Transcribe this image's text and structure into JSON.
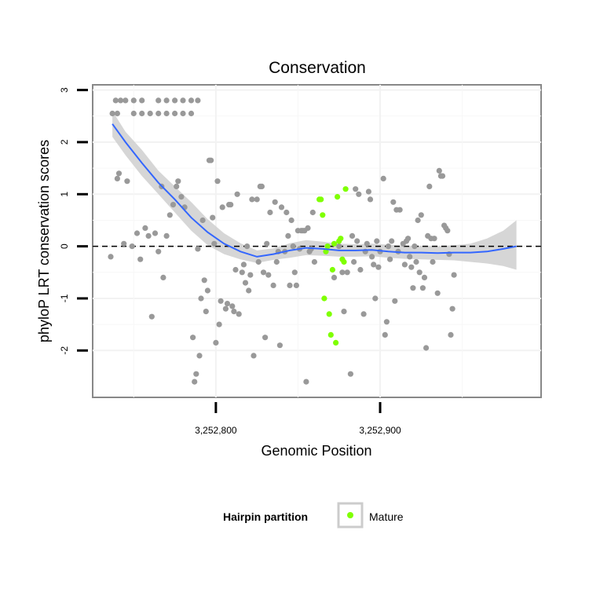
{
  "chart_data": {
    "type": "scatter",
    "title": "Conservation",
    "xlabel": "Genomic Position",
    "ylabel": "phyloP LRT conservation scores",
    "xlim": [
      3252725,
      3252998
    ],
    "ylim": [
      -2.9,
      3.1
    ],
    "x_ticks": [
      {
        "value": 3252800,
        "label": "3,252,800"
      },
      {
        "value": 3252900,
        "label": "3,252,900"
      }
    ],
    "y_ticks": [
      {
        "value": 3,
        "label": "3"
      },
      {
        "value": 2,
        "label": "2"
      },
      {
        "value": 1,
        "label": "1"
      },
      {
        "value": 0,
        "label": "0"
      },
      {
        "value": -1,
        "label": "-1"
      },
      {
        "value": -2,
        "label": "-2"
      }
    ],
    "reference_line": {
      "y": 0,
      "style": "dashed",
      "color": "#000000"
    },
    "smooth": {
      "name": "loess fit",
      "color": "#3366ff",
      "ribbon_color": "#cccccc",
      "x": [
        3252737,
        3252745,
        3252755,
        3252765,
        3252775,
        3252785,
        3252795,
        3252805,
        3252815,
        3252825,
        3252835,
        3252845,
        3252855,
        3252865,
        3252875,
        3252885,
        3252895,
        3252905,
        3252915,
        3252925,
        3252935,
        3252945,
        3252955,
        3252965,
        3252975,
        3252983
      ],
      "y": [
        2.35,
        2.0,
        1.6,
        1.22,
        0.9,
        0.55,
        0.27,
        0.05,
        -0.1,
        -0.2,
        -0.15,
        -0.08,
        -0.03,
        -0.05,
        -0.08,
        -0.08,
        -0.07,
        -0.1,
        -0.12,
        -0.12,
        -0.13,
        -0.12,
        -0.12,
        -0.1,
        -0.05,
        0.0
      ],
      "upper": [
        2.6,
        2.2,
        1.85,
        1.45,
        1.15,
        0.85,
        0.52,
        0.25,
        0.06,
        -0.08,
        -0.04,
        0.06,
        0.12,
        0.09,
        0.05,
        0.04,
        0.05,
        0.03,
        0.01,
        0.01,
        0.0,
        0.02,
        0.05,
        0.15,
        0.3,
        0.5
      ],
      "lower": [
        2.1,
        1.75,
        1.35,
        1.0,
        0.65,
        0.3,
        0.02,
        -0.15,
        -0.25,
        -0.32,
        -0.26,
        -0.22,
        -0.17,
        -0.18,
        -0.2,
        -0.2,
        -0.19,
        -0.22,
        -0.24,
        -0.25,
        -0.26,
        -0.27,
        -0.3,
        -0.33,
        -0.38,
        -0.45
      ]
    },
    "series": [
      {
        "name": "Other",
        "color": "#999999",
        "points": [
          [
            3252737,
            2.55
          ],
          [
            3252739,
            2.8
          ],
          [
            3252742,
            2.8
          ],
          [
            3252745,
            2.8
          ],
          [
            3252750,
            2.8
          ],
          [
            3252755,
            2.8
          ],
          [
            3252740,
            2.55
          ],
          [
            3252750,
            2.55
          ],
          [
            3252755,
            2.55
          ],
          [
            3252760,
            2.55
          ],
          [
            3252765,
            2.55
          ],
          [
            3252770,
            2.55
          ],
          [
            3252775,
            2.55
          ],
          [
            3252780,
            2.55
          ],
          [
            3252785,
            2.55
          ],
          [
            3252765,
            2.8
          ],
          [
            3252770,
            2.8
          ],
          [
            3252775,
            2.8
          ],
          [
            3252780,
            2.8
          ],
          [
            3252785,
            2.8
          ],
          [
            3252789,
            2.8
          ],
          [
            3252736,
            -0.2
          ],
          [
            3252740,
            1.3
          ],
          [
            3252741,
            1.4
          ],
          [
            3252744,
            0.05
          ],
          [
            3252746,
            1.25
          ],
          [
            3252749,
            0.0
          ],
          [
            3252752,
            0.25
          ],
          [
            3252754,
            -0.25
          ],
          [
            3252757,
            0.35
          ],
          [
            3252759,
            0.2
          ],
          [
            3252761,
            -1.35
          ],
          [
            3252763,
            0.25
          ],
          [
            3252765,
            -0.1
          ],
          [
            3252767,
            1.15
          ],
          [
            3252768,
            -0.6
          ],
          [
            3252770,
            0.2
          ],
          [
            3252772,
            0.6
          ],
          [
            3252774,
            0.8
          ],
          [
            3252776,
            1.15
          ],
          [
            3252777,
            1.25
          ],
          [
            3252779,
            0.95
          ],
          [
            3252781,
            0.75
          ],
          [
            3252786,
            -1.75
          ],
          [
            3252787,
            -2.6
          ],
          [
            3252788,
            -2.45
          ],
          [
            3252789,
            -0.05
          ],
          [
            3252790,
            -2.1
          ],
          [
            3252791,
            -1.0
          ],
          [
            3252792,
            0.5
          ],
          [
            3252793,
            -0.65
          ],
          [
            3252794,
            -1.25
          ],
          [
            3252795,
            -0.85
          ],
          [
            3252796,
            1.65
          ],
          [
            3252797,
            1.65
          ],
          [
            3252798,
            0.55
          ],
          [
            3252799,
            0.05
          ],
          [
            3252800,
            -1.85
          ],
          [
            3252801,
            1.25
          ],
          [
            3252802,
            -1.5
          ],
          [
            3252803,
            -1.05
          ],
          [
            3252804,
            0.75
          ],
          [
            3252806,
            -1.2
          ],
          [
            3252807,
            -1.1
          ],
          [
            3252808,
            0.8
          ],
          [
            3252809,
            0.8
          ],
          [
            3252810,
            -1.15
          ],
          [
            3252811,
            -1.25
          ],
          [
            3252812,
            -0.45
          ],
          [
            3252813,
            1.0
          ],
          [
            3252814,
            -1.3
          ],
          [
            3252816,
            -0.5
          ],
          [
            3252817,
            -0.35
          ],
          [
            3252818,
            -0.7
          ],
          [
            3252819,
            0.0
          ],
          [
            3252820,
            -0.85
          ],
          [
            3252821,
            -0.55
          ],
          [
            3252822,
            0.9
          ],
          [
            3252823,
            -2.1
          ],
          [
            3252825,
            0.9
          ],
          [
            3252826,
            -0.3
          ],
          [
            3252827,
            1.15
          ],
          [
            3252828,
            1.15
          ],
          [
            3252829,
            -0.5
          ],
          [
            3252830,
            -1.75
          ],
          [
            3252831,
            0.05
          ],
          [
            3252832,
            -0.55
          ],
          [
            3252833,
            0.65
          ],
          [
            3252835,
            -0.75
          ],
          [
            3252836,
            0.85
          ],
          [
            3252837,
            -0.3
          ],
          [
            3252838,
            -0.1
          ],
          [
            3252839,
            -1.9
          ],
          [
            3252840,
            0.75
          ],
          [
            3252842,
            -0.1
          ],
          [
            3252843,
            0.65
          ],
          [
            3252844,
            0.2
          ],
          [
            3252845,
            -0.75
          ],
          [
            3252846,
            0.5
          ],
          [
            3252847,
            0.0
          ],
          [
            3252848,
            -0.5
          ],
          [
            3252849,
            -0.75
          ],
          [
            3252850,
            0.3
          ],
          [
            3252851,
            -0.05
          ],
          [
            3252852,
            0.3
          ],
          [
            3252853,
            0.3
          ],
          [
            3252854,
            0.3
          ],
          [
            3252855,
            -2.6
          ],
          [
            3252856,
            0.35
          ],
          [
            3252857,
            -0.1
          ],
          [
            3252858,
            -0.05
          ],
          [
            3252859,
            0.65
          ],
          [
            3252860,
            -0.3
          ],
          [
            3252872,
            -0.6
          ],
          [
            3252875,
            0.0
          ],
          [
            3252877,
            -0.5
          ],
          [
            3252878,
            -1.25
          ],
          [
            3252880,
            -0.5
          ],
          [
            3252882,
            -2.45
          ],
          [
            3252883,
            0.2
          ],
          [
            3252884,
            -0.3
          ],
          [
            3252885,
            1.1
          ],
          [
            3252886,
            0.1
          ],
          [
            3252887,
            1.0
          ],
          [
            3252888,
            -0.45
          ],
          [
            3252890,
            -1.3
          ],
          [
            3252891,
            -0.1
          ],
          [
            3252892,
            0.05
          ],
          [
            3252893,
            1.05
          ],
          [
            3252894,
            0.9
          ],
          [
            3252895,
            -0.2
          ],
          [
            3252896,
            -0.35
          ],
          [
            3252897,
            -1.0
          ],
          [
            3252898,
            0.1
          ],
          [
            3252899,
            -0.4
          ],
          [
            3252900,
            -0.1
          ],
          [
            3252902,
            1.3
          ],
          [
            3252903,
            -1.7
          ],
          [
            3252904,
            -1.45
          ],
          [
            3252905,
            0.0
          ],
          [
            3252906,
            -0.25
          ],
          [
            3252907,
            0.1
          ],
          [
            3252908,
            0.85
          ],
          [
            3252909,
            -1.05
          ],
          [
            3252910,
            0.7
          ],
          [
            3252911,
            -0.1
          ],
          [
            3252912,
            0.7
          ],
          [
            3252914,
            0.05
          ],
          [
            3252915,
            -0.35
          ],
          [
            3252916,
            0.1
          ],
          [
            3252917,
            0.15
          ],
          [
            3252918,
            -0.2
          ],
          [
            3252919,
            -0.4
          ],
          [
            3252920,
            -0.8
          ],
          [
            3252921,
            0.0
          ],
          [
            3252922,
            -0.3
          ],
          [
            3252923,
            0.5
          ],
          [
            3252924,
            -0.5
          ],
          [
            3252925,
            0.6
          ],
          [
            3252926,
            -0.8
          ],
          [
            3252927,
            -0.6
          ],
          [
            3252928,
            -1.95
          ],
          [
            3252929,
            0.2
          ],
          [
            3252930,
            1.15
          ],
          [
            3252931,
            0.15
          ],
          [
            3252932,
            -0.3
          ],
          [
            3252933,
            0.15
          ],
          [
            3252935,
            -0.9
          ],
          [
            3252936,
            1.45
          ],
          [
            3252937,
            1.35
          ],
          [
            3252938,
            1.35
          ],
          [
            3252939,
            0.4
          ],
          [
            3252940,
            0.35
          ],
          [
            3252941,
            0.3
          ],
          [
            3252942,
            -0.15
          ],
          [
            3252943,
            -1.7
          ],
          [
            3252944,
            -1.2
          ],
          [
            3252945,
            -0.55
          ]
        ]
      },
      {
        "name": "Mature",
        "color": "#7fff00",
        "points": [
          [
            3252863,
            0.9
          ],
          [
            3252864,
            0.9
          ],
          [
            3252865,
            0.6
          ],
          [
            3252866,
            -1.0
          ],
          [
            3252867,
            -0.1
          ],
          [
            3252868,
            0.0
          ],
          [
            3252869,
            -1.3
          ],
          [
            3252870,
            -1.7
          ],
          [
            3252871,
            -0.45
          ],
          [
            3252872,
            0.05
          ],
          [
            3252873,
            -1.85
          ],
          [
            3252874,
            0.95
          ],
          [
            3252875,
            0.1
          ],
          [
            3252876,
            0.15
          ],
          [
            3252877,
            -0.25
          ],
          [
            3252878,
            -0.3
          ],
          [
            3252879,
            1.1
          ]
        ]
      }
    ],
    "legend": {
      "title": "Hairpin partition",
      "position": "bottom",
      "entries": [
        {
          "label": "Mature",
          "color": "#7fff00"
        }
      ]
    }
  }
}
